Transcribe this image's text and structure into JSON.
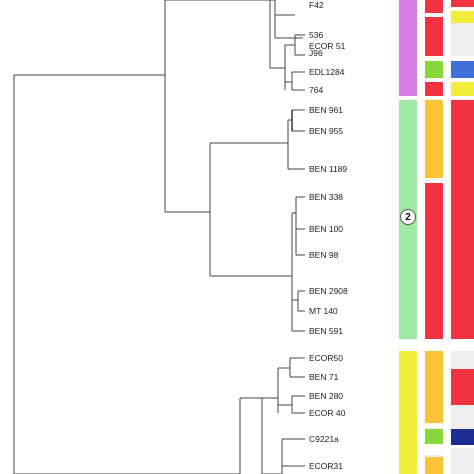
{
  "strains": [
    {
      "name": "F42"
    },
    {
      "name": "ECOR 51"
    },
    {
      "name": "536"
    },
    {
      "name": "J96"
    },
    {
      "name": "EDL1284"
    },
    {
      "name": "764"
    },
    {
      "name": "BEN 961"
    },
    {
      "name": "BEN 955"
    },
    {
      "name": "BEN 1189"
    },
    {
      "name": "BEN 338"
    },
    {
      "name": "BEN 100"
    },
    {
      "name": "BEN 98"
    },
    {
      "name": "BEN 2908"
    },
    {
      "name": "MT 140"
    },
    {
      "name": "BEN 591"
    },
    {
      "name": "ECOR50"
    },
    {
      "name": "BEN 71"
    },
    {
      "name": "BEN 280"
    },
    {
      "name": "ECOR 40"
    },
    {
      "name": "C9221a"
    },
    {
      "name": "ECOR31"
    }
  ],
  "clade_badge": "2",
  "colors": {
    "violet": "#d77ce3",
    "green_light": "#9ee8a4",
    "yellow": "#f0ee3a",
    "red": "#ef3340",
    "orange": "#f9c33a",
    "green": "#86d83a",
    "blue": "#3f6fd8",
    "navy": "#1c2d8f",
    "grey": "#eeeeee",
    "line": "#444444"
  }
}
